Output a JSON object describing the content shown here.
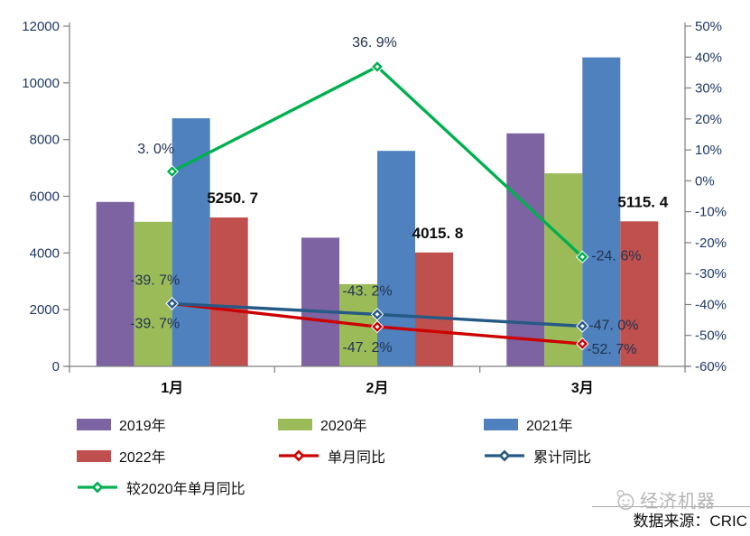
{
  "chart_data": {
    "type": "bar+line",
    "title": "",
    "categories": [
      "1月",
      "2月",
      "3月"
    ],
    "grid": "off",
    "legend_position": "bottom-left",
    "left_axis": {
      "min": 0,
      "max": 12000,
      "step": 2000,
      "tick_labels": [
        "0",
        "2000",
        "4000",
        "6000",
        "8000",
        "10000",
        "12000"
      ]
    },
    "right_axis": {
      "min": -60,
      "max": 50,
      "step": 10,
      "tick_labels": [
        "-60%",
        "-50%",
        "-40%",
        "-30%",
        "-20%",
        "-10%",
        "0%",
        "10%",
        "20%",
        "30%",
        "40%",
        "50%"
      ]
    },
    "bar_series": [
      {
        "name": "2019年",
        "color": "#7E63A3",
        "values": [
          5800,
          4540,
          8220
        ]
      },
      {
        "name": "2020年",
        "color": "#9BBB59",
        "values": [
          5100,
          2900,
          6810
        ]
      },
      {
        "name": "2021年",
        "color": "#4E81BD",
        "values": [
          8750,
          7600,
          10900
        ]
      },
      {
        "name": "2022年",
        "color": "#C0504D",
        "values": [
          5250.7,
          4015.8,
          5115.4
        ],
        "labels": [
          "5250. 7",
          "4015. 8",
          "5115. 4"
        ]
      }
    ],
    "line_series": [
      {
        "name": "单月同比",
        "color": "#CC0000",
        "values": [
          -39.7,
          -47.2,
          -52.7
        ],
        "labels": [
          "-39. 7%",
          "-47. 2%",
          "-52. 7%"
        ],
        "label_offsets": [
          [
            -19,
            27,
            "middle"
          ],
          [
            -11,
            28,
            "middle"
          ],
          [
            5,
            11,
            "start"
          ]
        ]
      },
      {
        "name": "累计同比",
        "color": "#275985",
        "values": [
          -39.7,
          -43.2,
          -47.0
        ],
        "labels": [
          "-39. 7%",
          "-43. 2%",
          "-47. 0%"
        ],
        "label_offsets": [
          [
            -19,
            -21,
            "middle"
          ],
          [
            -11,
            -21,
            "middle"
          ],
          [
            7,
            4,
            "start"
          ]
        ]
      },
      {
        "name": "较2020年单月同比",
        "color": "#00B050",
        "values": [
          3.0,
          36.9,
          -24.6
        ],
        "labels": [
          "3. 0%",
          "36. 9%",
          "-24. 6%"
        ],
        "label_offsets": [
          [
            -18,
            -20,
            "middle"
          ],
          [
            -3,
            -22,
            "middle"
          ],
          [
            10,
            4,
            "start"
          ]
        ]
      }
    ]
  },
  "footer": {
    "watermark_text": "经济机器",
    "watermark_icon": "robot-face-icon",
    "source_text": "数据来源：CRIC"
  }
}
